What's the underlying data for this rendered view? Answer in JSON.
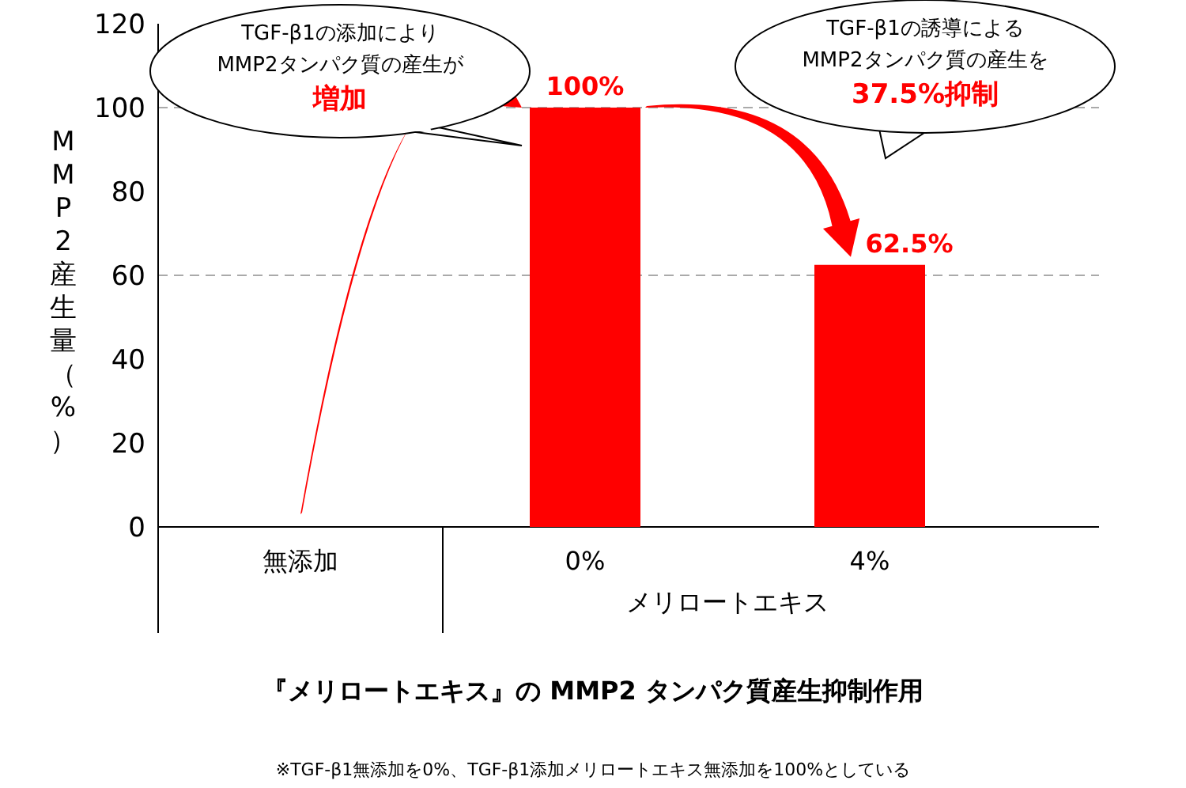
{
  "chart_data": {
    "type": "bar",
    "title": "『メリロートエキス』の MMP2 タンパク質産生抑制作用",
    "ylabel": "MMP2産生量（%）",
    "xlabel": "メリロートエキス",
    "categories": [
      "無添加",
      "0%",
      "4%"
    ],
    "series": [
      {
        "color": "#ff0000",
        "values": [
          0,
          100,
          62.5
        ],
        "value_labels": [
          null,
          "100%",
          "62.5%"
        ]
      }
    ],
    "ylim": [
      0,
      120
    ],
    "yticks": [
      0,
      20,
      40,
      60,
      80,
      100,
      120
    ],
    "grid": false,
    "ref_lines": [
      {
        "axis": "y",
        "value": 100,
        "color": "#aaaaaa",
        "line_style": "dashed"
      },
      {
        "axis": "y",
        "value": 60,
        "color": "#aaaaaa",
        "line_style": "dashed"
      }
    ],
    "annotations": [
      "TGF-β1の添加により",
      "MMP2タンパク質の産生が",
      "増加",
      "TGF-β1の誘導による",
      "MMP2タンパク質の産生を",
      "37.5%抑制",
      "※TGF-β1無添加を0%、TGF-β1添加メリロートエキス無添加を100%としている"
    ]
  }
}
